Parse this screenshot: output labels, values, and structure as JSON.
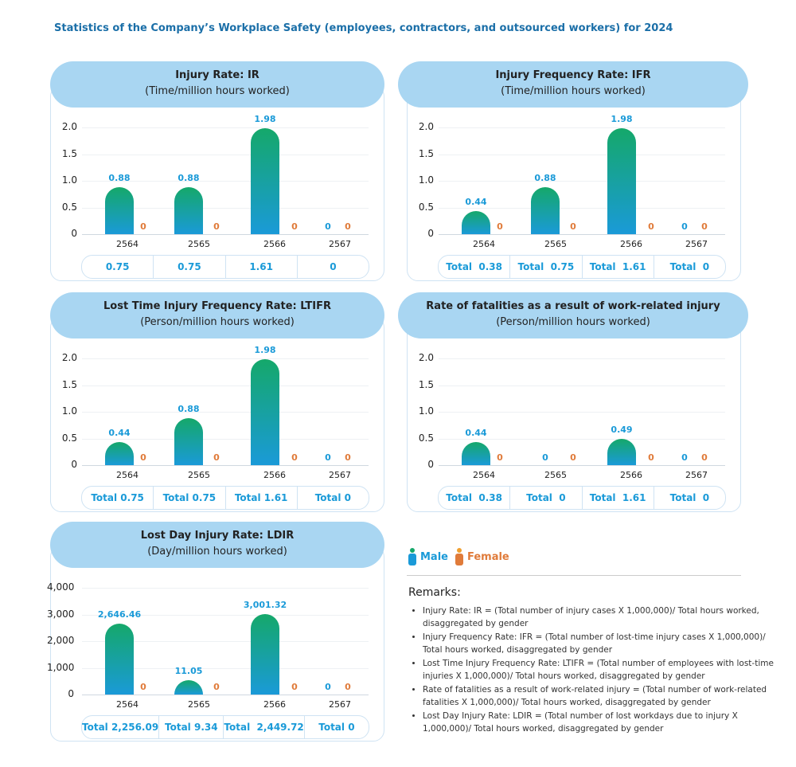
{
  "title": "Statistics of the Company’s Workplace Safety (employees, contractors, and outsourced workers) for 2024",
  "legend": {
    "male": "Male",
    "female": "Female",
    "colors": {
      "male": "#1a9ad8",
      "female": "#e07b3a"
    }
  },
  "remarks": {
    "title": "Remarks:",
    "items": [
      "Injury Rate: IR = (Total number of injury cases X 1,000,000)/ Total hours worked, disaggregated by gender",
      "Injury Frequency Rate: IFR = (Total number of lost-time injury cases X 1,000,000)/ Total hours worked, disaggregated by gender",
      "Lost Time Injury Frequency Rate: LTIFR = (Total number of employees with lost-time injuries X 1,000,000)/ Total hours worked, disaggregated by gender",
      "Rate of fatalities as a result of work-related injury = (Total number of work-related fatalities X 1,000,000)/ Total hours worked, disaggregated by gender",
      "Lost Day Injury Rate: LDIR = (Total number of lost workdays due to injury X 1,000,000)/ Total hours worked, disaggregated by gender"
    ]
  },
  "chart_data": [
    {
      "type": "bar",
      "title": "Injury Rate: IR",
      "subtitle": "(Time/million hours worked)",
      "categories": [
        "2564",
        "2565",
        "2566",
        "2567"
      ],
      "ylim": [
        0,
        2
      ],
      "yticks": [
        "0",
        "0.5",
        "1.0",
        "1.5",
        "2.0"
      ],
      "series": [
        {
          "name": "Male",
          "values": [
            0.88,
            0.88,
            1.98,
            0
          ],
          "labels": [
            "0.88",
            "0.88",
            "1.98",
            "0"
          ]
        },
        {
          "name": "Female",
          "values": [
            0,
            0,
            0,
            0
          ],
          "labels": [
            "0",
            "0",
            "0",
            "0"
          ]
        }
      ],
      "totals": [
        "0.75",
        "0.75",
        "1.61",
        "0"
      ]
    },
    {
      "type": "bar",
      "title": "Injury Frequency Rate: IFR",
      "subtitle": "(Time/million hours worked)",
      "categories": [
        "2564",
        "2565",
        "2566",
        "2567"
      ],
      "ylim": [
        0,
        2
      ],
      "yticks": [
        "0",
        "0.5",
        "1.0",
        "1.5",
        "2.0"
      ],
      "series": [
        {
          "name": "Male",
          "values": [
            0.44,
            0.88,
            1.98,
            0
          ],
          "labels": [
            "0.44",
            "0.88",
            "1.98",
            "0"
          ]
        },
        {
          "name": "Female",
          "values": [
            0,
            0,
            0,
            0
          ],
          "labels": [
            "0",
            "0",
            "0",
            "0"
          ]
        }
      ],
      "totals": [
        "Total  0.38",
        "Total  0.75",
        "Total  1.61",
        "Total  0"
      ]
    },
    {
      "type": "bar",
      "title": "Lost Time Injury Frequency Rate: LTIFR",
      "subtitle": "(Person/million hours worked)",
      "categories": [
        "2564",
        "2565",
        "2566",
        "2567"
      ],
      "ylim": [
        0,
        2
      ],
      "yticks": [
        "0",
        "0.5",
        "1.0",
        "1.5",
        "2.0"
      ],
      "series": [
        {
          "name": "Male",
          "values": [
            0.44,
            0.88,
            1.98,
            0
          ],
          "labels": [
            "0.44",
            "0.88",
            "1.98",
            "0"
          ]
        },
        {
          "name": "Female",
          "values": [
            0,
            0,
            0,
            0
          ],
          "labels": [
            "0",
            "0",
            "0",
            "0"
          ]
        }
      ],
      "totals": [
        "Total 0.75",
        "Total 0.75",
        "Total 1.61",
        "Total 0"
      ]
    },
    {
      "type": "bar",
      "title": "Rate of fatalities as a result of work-related injury",
      "subtitle": "(Person/million hours worked)",
      "categories": [
        "2564",
        "2565",
        "2566",
        "2567"
      ],
      "ylim": [
        0,
        2
      ],
      "yticks": [
        "0",
        "0.5",
        "1.0",
        "1.5",
        "2.0"
      ],
      "series": [
        {
          "name": "Male",
          "values": [
            0.44,
            0,
            0.49,
            0
          ],
          "labels": [
            "0.44",
            "0",
            "0.49",
            "0"
          ]
        },
        {
          "name": "Female",
          "values": [
            0,
            0,
            0,
            0
          ],
          "labels": [
            "0",
            "0",
            "0",
            "0"
          ]
        }
      ],
      "totals": [
        "Total  0.38",
        "Total  0",
        "Total  1.61",
        "Total  0"
      ]
    },
    {
      "type": "bar",
      "title": "Lost Day Injury Rate: LDIR",
      "subtitle": "(Day/million hours worked)",
      "categories": [
        "2564",
        "2565",
        "2566",
        "2567"
      ],
      "ylim": [
        0,
        4000
      ],
      "yticks": [
        "0",
        "1,000",
        "2,000",
        "3,000",
        "4,000"
      ],
      "series": [
        {
          "name": "Male",
          "values": [
            2646.46,
            11.05,
            3001.32,
            0
          ],
          "labels": [
            "2,646.46",
            "11.05",
            "3,001.32",
            "0"
          ]
        },
        {
          "name": "Female",
          "values": [
            0,
            0,
            0,
            0
          ],
          "labels": [
            "0",
            "0",
            "0",
            "0"
          ]
        }
      ],
      "totals": [
        "Total 2,256.09",
        "Total 9.34",
        "Total  2,449.72",
        "Total 0"
      ]
    }
  ]
}
